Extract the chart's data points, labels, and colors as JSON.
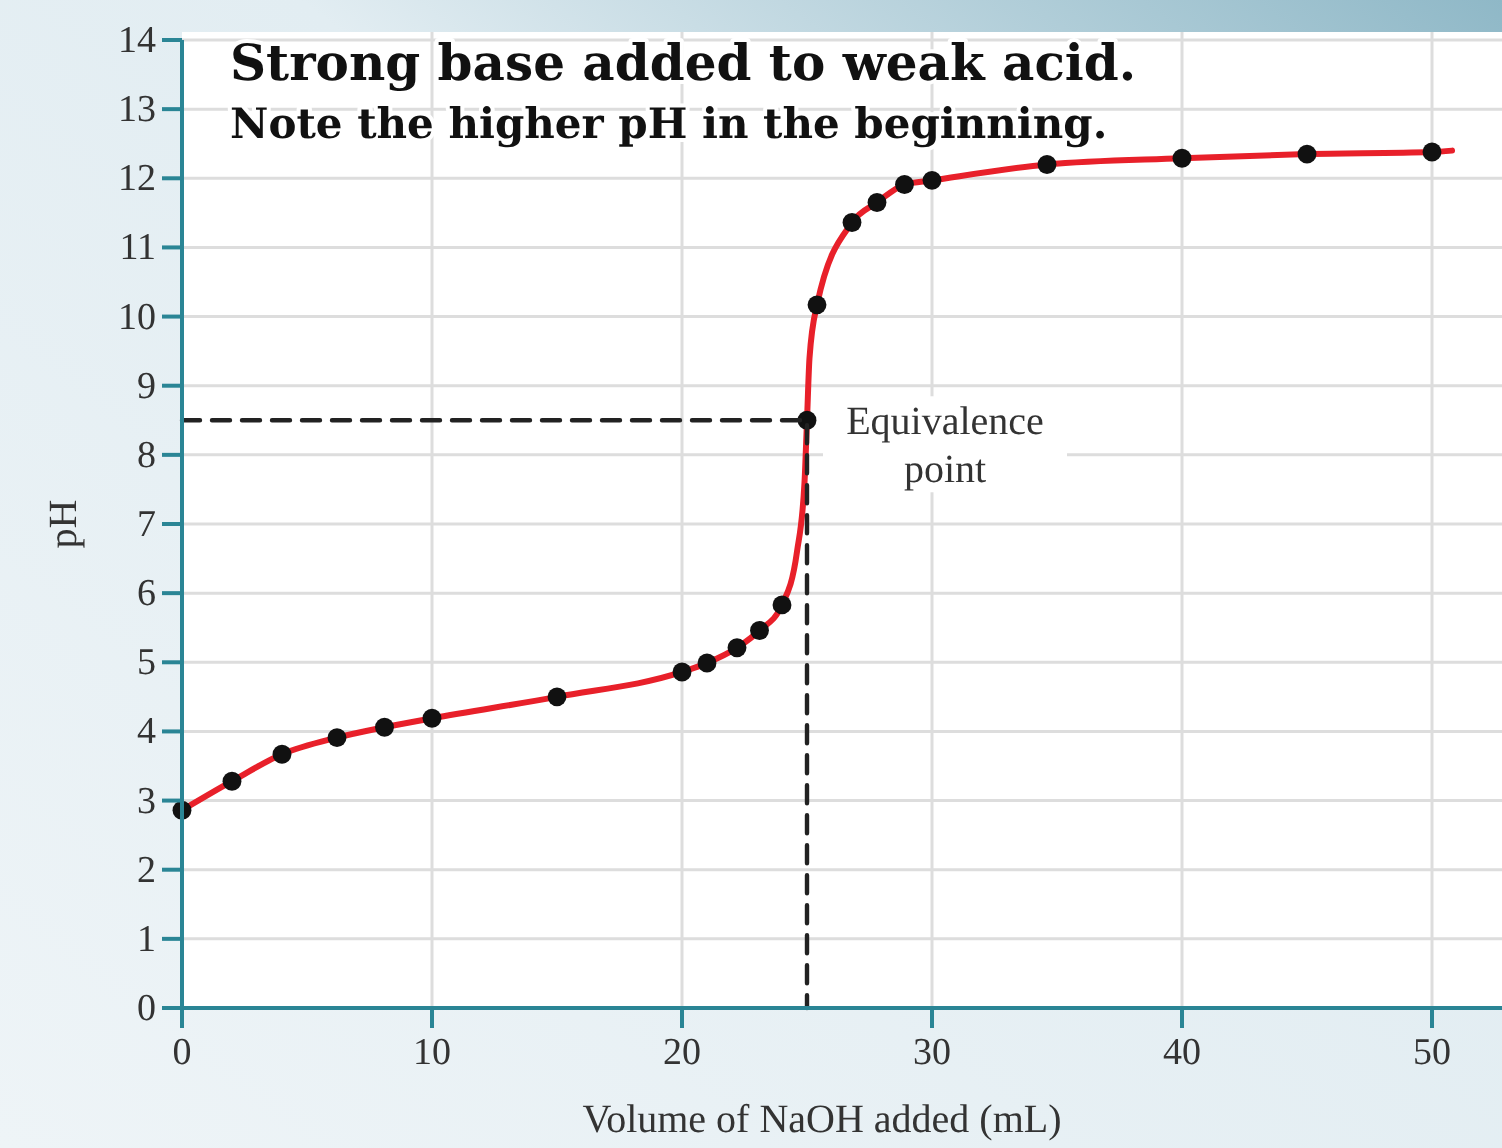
{
  "chart_data": {
    "type": "line",
    "title": "Strong base added to weak acid.",
    "subtitle": "Note the higher pH in the beginning.",
    "xlabel": "Volume of NaOH added (mL)",
    "ylabel": "pH",
    "xlim": [
      0,
      52.8
    ],
    "xticks": [
      0,
      10,
      20,
      30,
      40,
      50
    ],
    "ylim": [
      0,
      14
    ],
    "yticks": [
      0,
      1,
      2,
      3,
      4,
      5,
      6,
      7,
      8,
      9,
      10,
      11,
      12,
      13,
      14
    ],
    "grid": true,
    "series": [
      {
        "type": "line",
        "color": "#e8202a",
        "marker": "none",
        "x": [
          0,
          2,
          4,
          6.2,
          8.1,
          10,
          15,
          20,
          21,
          22.2,
          23.1,
          24,
          24.6,
          24.9,
          25,
          25.1,
          25.4,
          26.8,
          27.8,
          28.9,
          30,
          34.6,
          40,
          45,
          50,
          50.8
        ],
        "values": [
          2.86,
          3.28,
          3.67,
          3.91,
          4.06,
          4.19,
          4.5,
          4.86,
          4.99,
          5.21,
          5.46,
          5.83,
          6.6,
          7.6,
          8.5,
          9.4,
          10.17,
          11.36,
          11.65,
          11.91,
          11.97,
          12.2,
          12.29,
          12.35,
          12.38,
          12.4
        ]
      },
      {
        "type": "scatter",
        "color": "#111111",
        "marker": "circle",
        "x": [
          0,
          2,
          4,
          6.2,
          8.1,
          10,
          15,
          20,
          21,
          22.2,
          23.1,
          24,
          25,
          25.4,
          26.8,
          27.8,
          28.9,
          30,
          34.6,
          40,
          45,
          50
        ],
        "values": [
          2.86,
          3.28,
          3.67,
          3.91,
          4.06,
          4.19,
          4.5,
          4.86,
          4.99,
          5.21,
          5.46,
          5.83,
          8.5,
          10.17,
          11.36,
          11.65,
          11.91,
          11.97,
          12.2,
          12.29,
          12.35,
          12.38
        ]
      },
      {
        "type": "line",
        "color": "#222222",
        "marker": "none",
        "line_style": "dashed",
        "x": [
          0,
          25,
          25
        ],
        "values": [
          8.5,
          8.5,
          0
        ]
      }
    ],
    "annotations": [
      {
        "text": "Equivalence point",
        "x": 25,
        "y": 8.5
      }
    ]
  }
}
